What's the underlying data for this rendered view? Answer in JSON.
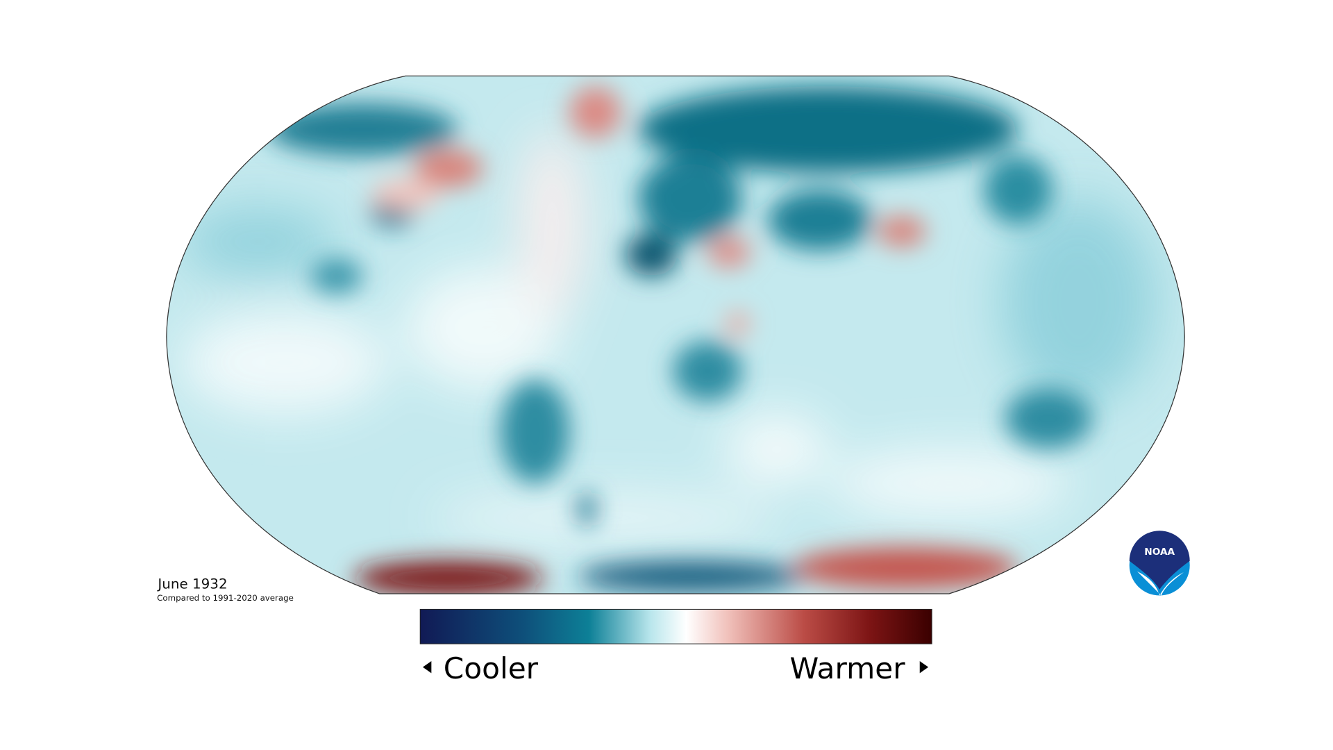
{
  "map": {
    "title": "June 1932",
    "subtitle": "Compared to 1991-2020 average"
  },
  "legend": {
    "low": "Cooler",
    "high": "Warmer"
  },
  "logo": "NOAA"
}
